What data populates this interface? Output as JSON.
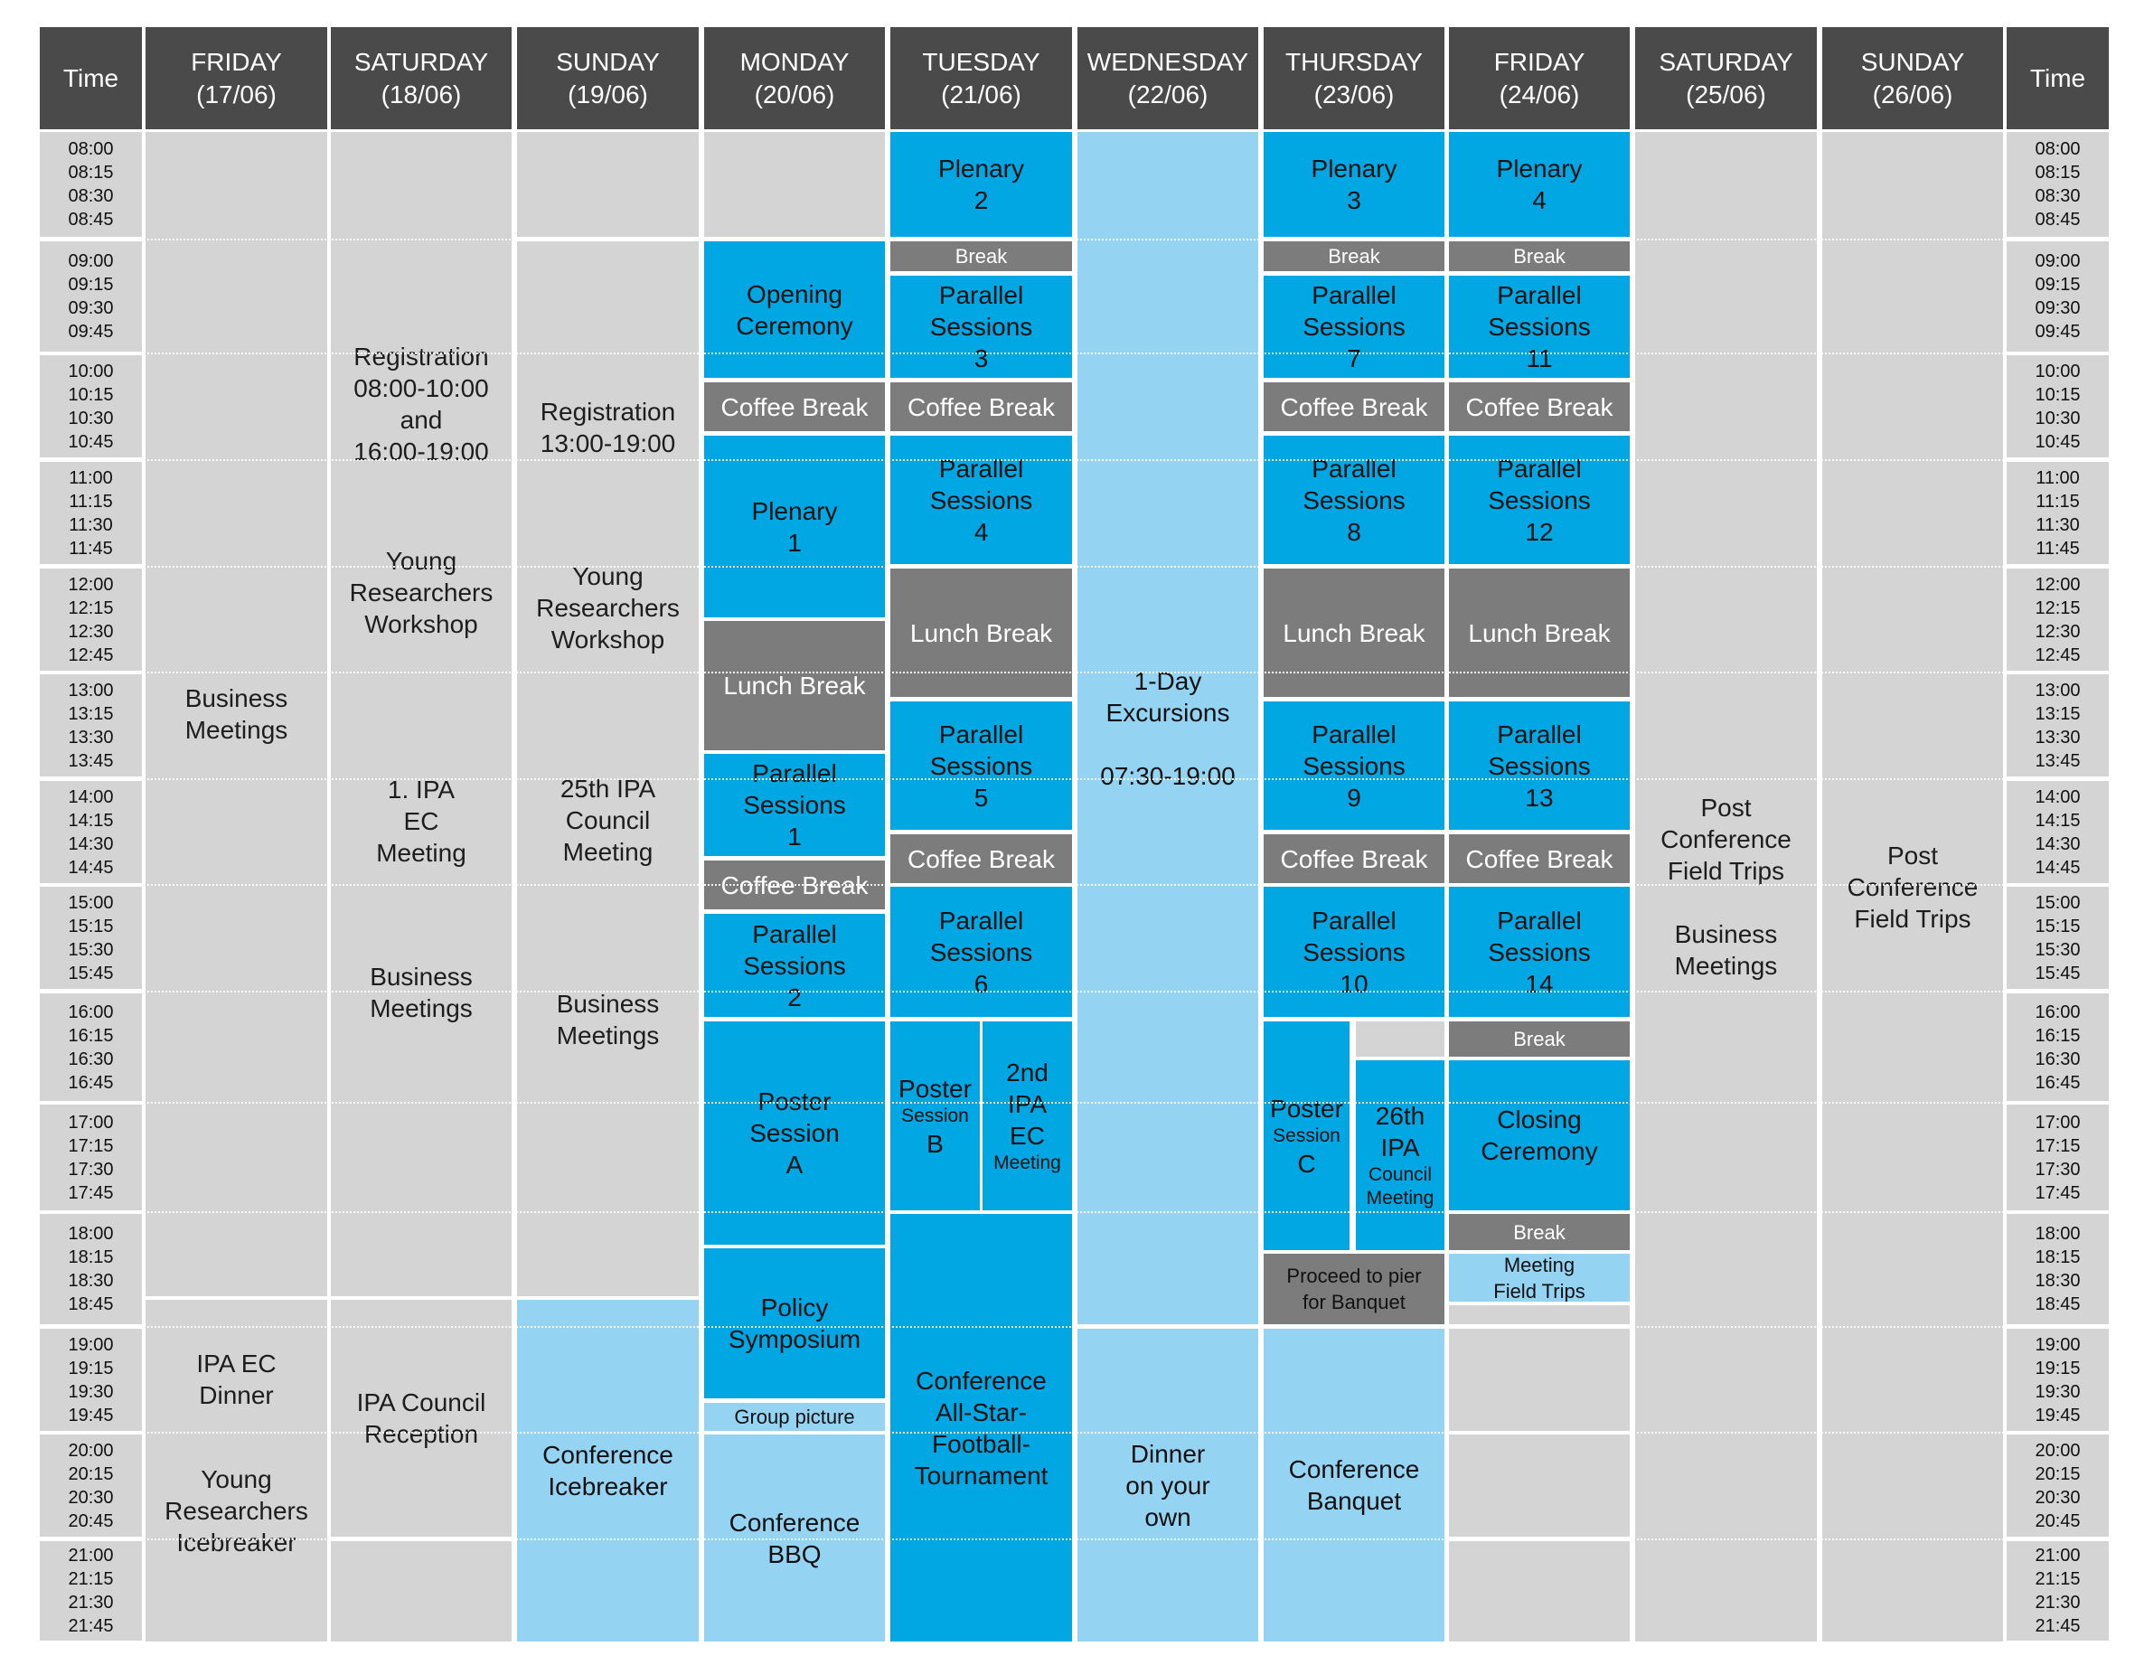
{
  "time_label": "Time",
  "days": [
    {
      "name": "FRIDAY",
      "date": "(17/06)"
    },
    {
      "name": "SATURDAY",
      "date": "(18/06)"
    },
    {
      "name": "SUNDAY",
      "date": "(19/06)"
    },
    {
      "name": "MONDAY",
      "date": "(20/06)"
    },
    {
      "name": "TUESDAY",
      "date": "(21/06)"
    },
    {
      "name": "WEDNESDAY",
      "date": "(22/06)"
    },
    {
      "name": "THURSDAY",
      "date": "(23/06)"
    },
    {
      "name": "FRIDAY",
      "date": "(24/06)"
    },
    {
      "name": "SATURDAY",
      "date": "(25/06)"
    },
    {
      "name": "SUNDAY",
      "date": "(26/06)"
    }
  ],
  "time_groups": [
    [
      "08:00",
      "08:15",
      "08:30",
      "08:45"
    ],
    [
      "09:00",
      "09:15",
      "09:30",
      "09:45"
    ],
    [
      "10:00",
      "10:15",
      "10:30",
      "10:45"
    ],
    [
      "11:00",
      "11:15",
      "11:30",
      "11:45"
    ],
    [
      "12:00",
      "12:15",
      "12:30",
      "12:45"
    ],
    [
      "13:00",
      "13:15",
      "13:30",
      "13:45"
    ],
    [
      "14:00",
      "14:15",
      "14:30",
      "14:45"
    ],
    [
      "15:00",
      "15:15",
      "15:30",
      "15:45"
    ],
    [
      "16:00",
      "16:15",
      "16:30",
      "16:45"
    ],
    [
      "17:00",
      "17:15",
      "17:30",
      "17:45"
    ],
    [
      "18:00",
      "18:15",
      "18:30",
      "18:45"
    ],
    [
      "19:00",
      "19:15",
      "19:30",
      "19:45"
    ],
    [
      "20:00",
      "20:15",
      "20:30",
      "20:45"
    ],
    [
      "21:00",
      "21:15",
      "21:30",
      "21:45"
    ]
  ],
  "events": {
    "fri17_business": "Business\nMeetings",
    "fri17_dinner": "IPA EC\nDinner",
    "fri17_icebreaker": "Young\nResearchers\nIcebreaker",
    "sat18_registration": "Registration\n08:00-10:00\nand\n16:00-19:00",
    "sat18_workshop": "Young\nResearchers\nWorkshop",
    "sat18_ec": "1. IPA\nEC\nMeeting",
    "sat18_business": "Business\nMeetings",
    "sat18_reception": "IPA Council\nReception",
    "sun19_registration": "Registration\n13:00-19:00",
    "sun19_workshop": "Young\nResearchers\nWorkshop",
    "sun19_council": "25th IPA\nCouncil\nMeeting",
    "sun19_business": "Business\nMeetings",
    "sun19_icebreaker": "Conference\nIcebreaker",
    "mon20_opening": "Opening\nCeremony",
    "mon20_coffee1": "Coffee Break",
    "mon20_plenary": "Plenary\n1",
    "mon20_lunch": "Lunch Break",
    "mon20_parallel1": "Parallel\nSessions\n1",
    "mon20_coffee2": "Coffee Break",
    "mon20_parallel2": "Parallel\nSessions\n2",
    "mon20_poster": "Poster\nSession\nA",
    "mon20_policy": "Policy\nSymposium",
    "mon20_group": "Group picture",
    "mon20_bbq": "Conference\nBBQ",
    "tue21_plenary": "Plenary\n2",
    "tue21_break": "Break",
    "tue21_parallel3": "Parallel\nSessions\n3",
    "tue21_coffee1": "Coffee Break",
    "tue21_parallel4": "Parallel\nSessions\n4",
    "tue21_lunch": "Lunch Break",
    "tue21_parallel5": "Parallel\nSessions\n5",
    "tue21_coffee2": "Coffee Break",
    "tue21_parallel6": "Parallel\nSessions\n6",
    "tue21_poster_main": "Poster",
    "tue21_poster_sub": "Session",
    "tue21_poster_letter": "B",
    "tue21_ec_main": "2nd\nIPA\nEC",
    "tue21_ec_sub": "Meeting",
    "tue21_football": "Conference\nAll-Star-\nFootball-\nTournament",
    "wed22_excursion": "1-Day\nExcursions\n\n07:30-19:00",
    "wed22_dinner": "Dinner\non your\nown",
    "thu23_plenary": "Plenary\n3",
    "thu23_break": "Break",
    "thu23_parallel7": "Parallel\nSessions\n7",
    "thu23_coffee1": "Coffee Break",
    "thu23_parallel8": "Parallel\nSessions\n8",
    "thu23_lunch": "Lunch Break",
    "thu23_parallel9": "Parallel\nSessions\n9",
    "thu23_coffee2": "Coffee Break",
    "thu23_parallel10": "Parallel\nSessions\n10",
    "thu23_poster_main": "Poster",
    "thu23_poster_sub": "Session",
    "thu23_poster_letter": "C",
    "thu23_council_main": "26th\nIPA",
    "thu23_council_sub": "Council\nMeeting",
    "thu23_pier": "Proceed to pier\nfor Banquet",
    "thu23_banquet": "Conference\nBanquet",
    "fri24_plenary": "Plenary\n4",
    "fri24_break1": "Break",
    "fri24_parallel11": "Parallel\nSessions\n11",
    "fri24_coffee1": "Coffee Break",
    "fri24_parallel12": "Parallel\nSessions\n12",
    "fri24_lunch": "Lunch Break",
    "fri24_parallel13": "Parallel\nSessions\n13",
    "fri24_coffee2": "Coffee Break",
    "fri24_parallel14": "Parallel\nSessions\n14",
    "fri24_break2": "Break",
    "fri24_closing": "Closing\nCeremony",
    "fri24_break3": "Break",
    "fri24_fieldtrips": "Meeting\nField Trips",
    "sat25_trips": "Post\nConference\nField Trips\n\nBusiness\nMeetings",
    "sun26_trips": "Post\nConference\nField Trips"
  },
  "colors": {
    "header": "#4a4a4a",
    "grey": "#d4d4d4",
    "blue": "#00a7e2",
    "light_blue": "#95d3f2",
    "dark_grey": "#7c7c7c"
  }
}
